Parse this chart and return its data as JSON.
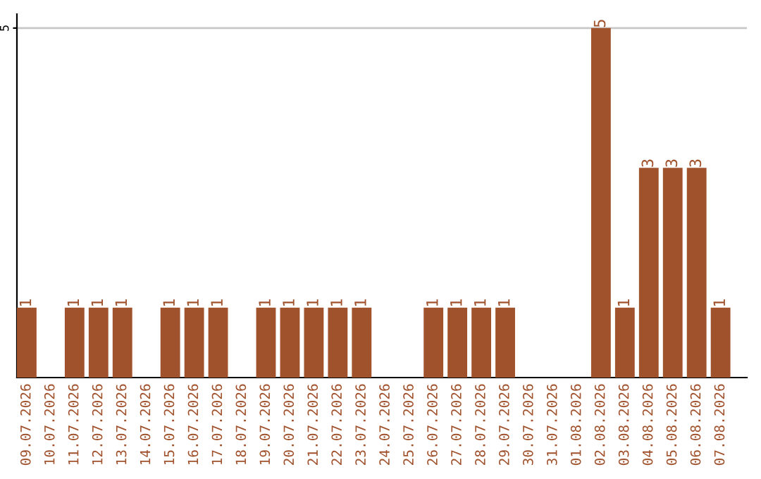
{
  "chart_data": {
    "type": "bar",
    "categories": [
      "09.07.2026",
      "10.07.2026",
      "11.07.2026",
      "12.07.2026",
      "13.07.2026",
      "14.07.2026",
      "15.07.2026",
      "16.07.2026",
      "17.07.2026",
      "18.07.2026",
      "19.07.2026",
      "20.07.2026",
      "21.07.2026",
      "22.07.2026",
      "23.07.2026",
      "24.07.2026",
      "25.07.2026",
      "26.07.2026",
      "27.07.2026",
      "28.07.2026",
      "29.07.2026",
      "30.07.2026",
      "31.07.2026",
      "01.08.2026",
      "02.08.2026",
      "03.08.2026",
      "04.08.2026",
      "05.08.2026",
      "06.08.2026",
      "07.08.2026"
    ],
    "values": [
      1,
      0,
      1,
      1,
      1,
      0,
      1,
      1,
      1,
      0,
      1,
      1,
      1,
      1,
      1,
      0,
      0,
      1,
      1,
      1,
      1,
      0,
      0,
      0,
      5,
      1,
      3,
      3,
      3,
      1
    ],
    "value_labels": [
      "1",
      null,
      "1",
      "1",
      "1",
      null,
      "1",
      "1",
      "1",
      null,
      "1",
      "1",
      "1",
      "1",
      "1",
      null,
      null,
      "1",
      "1",
      "1",
      "1",
      null,
      null,
      null,
      "5",
      "1",
      "3",
      "3",
      "3",
      "1"
    ],
    "color": "#a0522d",
    "ylim": [
      0,
      5.2
    ],
    "yticks": [
      5
    ],
    "grid": "y",
    "legend": false
  }
}
